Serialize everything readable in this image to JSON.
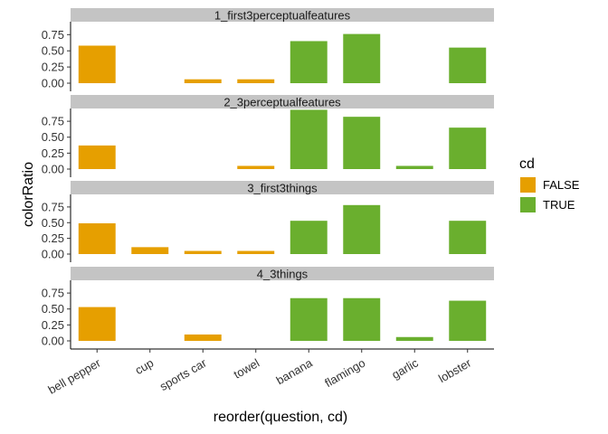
{
  "chart_data": {
    "type": "bar",
    "faceted": true,
    "categories": [
      "bell pepper",
      "cup",
      "sports car",
      "towel",
      "banana",
      "flamingo",
      "garlic",
      "lobster"
    ],
    "category_group": [
      "FALSE",
      "FALSE",
      "FALSE",
      "FALSE",
      "TRUE",
      "TRUE",
      "TRUE",
      "TRUE"
    ],
    "xlabel": "reorder(question, cd)",
    "ylabel": "colorRatio",
    "ylim": [
      0,
      0.95
    ],
    "yticks": [
      0.0,
      0.25,
      0.5,
      0.75
    ],
    "ytick_labels": [
      "0.00",
      "0.25",
      "0.50",
      "0.75"
    ],
    "legend": {
      "title": "cd",
      "placement": "right",
      "entries": [
        {
          "label": "FALSE",
          "color": "#E69F00"
        },
        {
          "label": "TRUE",
          "color": "#6AAF2E"
        }
      ]
    },
    "panels": [
      {
        "title": "1_first3perceptualfeatures",
        "values": [
          0.58,
          0.0,
          0.06,
          0.06,
          0.65,
          0.76,
          0.0,
          0.55
        ]
      },
      {
        "title": "2_3perceptualfeatures",
        "values": [
          0.37,
          0.0,
          0.0,
          0.05,
          0.93,
          0.82,
          0.05,
          0.65
        ]
      },
      {
        "title": "3_first3things",
        "values": [
          0.49,
          0.11,
          0.05,
          0.05,
          0.53,
          0.78,
          0.0,
          0.53
        ]
      },
      {
        "title": "4_3things",
        "values": [
          0.53,
          0.0,
          0.1,
          0.0,
          0.67,
          0.67,
          0.06,
          0.63
        ]
      }
    ]
  }
}
